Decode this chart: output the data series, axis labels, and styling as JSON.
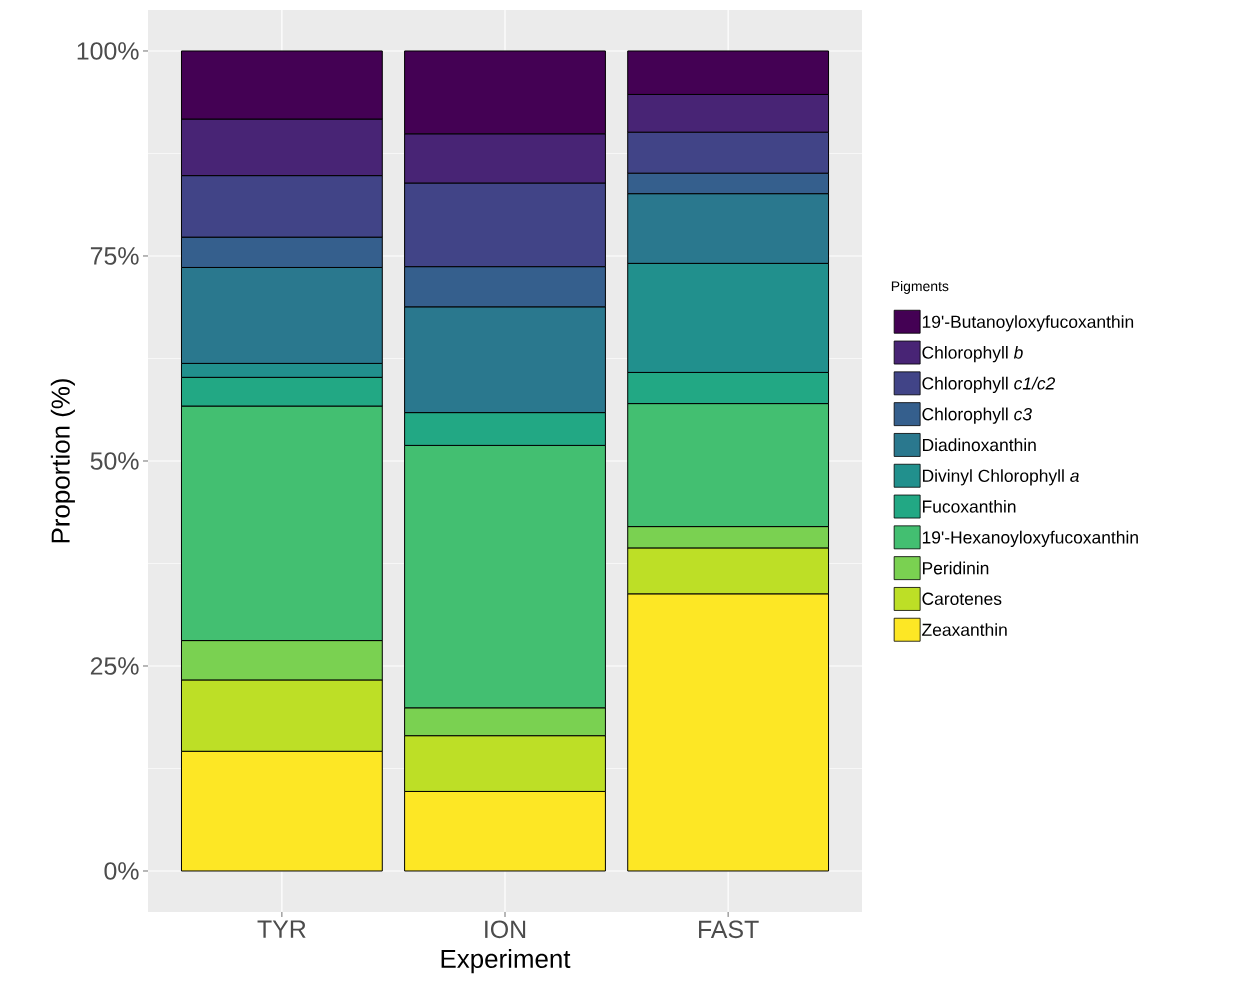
{
  "chart_data": {
    "type": "bar",
    "stacked": true,
    "xlabel": "Experiment",
    "ylabel": "Proportion (%)",
    "legend_title": "Pigments",
    "legend": "right",
    "grid": true,
    "categories": [
      "TYR",
      "ION",
      "FAST"
    ],
    "ylim": [
      -5,
      105
    ],
    "yticks": [
      {
        "value": 0,
        "label": "0%"
      },
      {
        "value": 25,
        "label": "25%"
      },
      {
        "value": 50,
        "label": "50%"
      },
      {
        "value": 75,
        "label": "75%"
      },
      {
        "value": 100,
        "label": "100%"
      }
    ],
    "series": [
      {
        "name": "Zeaxanthin",
        "color": "#fde725",
        "values": [
          14.6,
          9.7,
          33.8
        ]
      },
      {
        "name": "Carotenes",
        "color": "#bddf26",
        "values": [
          8.7,
          6.8,
          5.6
        ]
      },
      {
        "name": "Peridinin",
        "color": "#7ad151",
        "values": [
          4.8,
          3.4,
          2.6
        ]
      },
      {
        "name": "19'-Hexanoyloxyfucoxanthin",
        "color": "#43bf71",
        "values": [
          28.6,
          32.0,
          15.0
        ]
      },
      {
        "name": "Fucoxanthin",
        "color": "#22a884",
        "values": [
          3.5,
          4.0,
          3.8
        ]
      },
      {
        "name": "Divinyl Chlorophyll *a*",
        "color": "#21908d",
        "values": [
          1.7,
          null,
          13.3
        ]
      },
      {
        "name": "Diadinoxanthin",
        "color": "#2a788e",
        "values": [
          11.7,
          12.9,
          8.5
        ]
      },
      {
        "name": "Chlorophyll *c3*",
        "color": "#355f8d",
        "values": [
          3.7,
          4.9,
          2.5
        ]
      },
      {
        "name": "Chlorophyll *c1/c2*",
        "color": "#414487",
        "values": [
          7.5,
          10.2,
          5.0
        ]
      },
      {
        "name": "Chlorophyll *b*",
        "color": "#482475",
        "values": [
          6.9,
          6.0,
          4.6
        ]
      },
      {
        "name": "19'-Butanoyloxyfucoxanthin",
        "color": "#440154",
        "values": [
          8.3,
          10.1,
          5.3
        ]
      }
    ]
  }
}
